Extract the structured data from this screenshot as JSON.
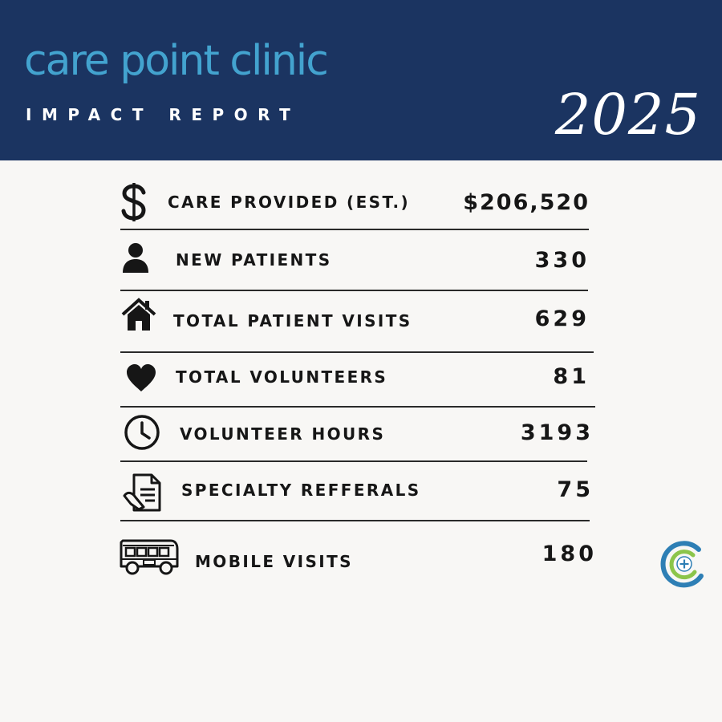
{
  "header": {
    "brand": "care point clinic",
    "subtitle": "IMPACT REPORT",
    "year": "2025"
  },
  "colors": {
    "header_bg": "#1b3461",
    "brand_text": "#43a3cf",
    "logo_blue": "#2e7fb5",
    "logo_green": "#8cc54a"
  },
  "stats": [
    {
      "icon": "dollar-icon",
      "label": "CARE PROVIDED (EST.)",
      "value": "$206,520"
    },
    {
      "icon": "person-icon",
      "label": "NEW PATIENTS",
      "value": "330"
    },
    {
      "icon": "house-icon",
      "label": "TOTAL PATIENT VISITS",
      "value": "629"
    },
    {
      "icon": "heart-icon",
      "label": "TOTAL VOLUNTEERS",
      "value": "81"
    },
    {
      "icon": "clock-icon",
      "label": "VOLUNTEER HOURS",
      "value": "3193"
    },
    {
      "icon": "referral-document-icon",
      "label": "SPECIALTY REFFERALS",
      "value": "75"
    },
    {
      "icon": "bus-icon",
      "label": "MOBILE VISITS",
      "value": "180"
    }
  ]
}
